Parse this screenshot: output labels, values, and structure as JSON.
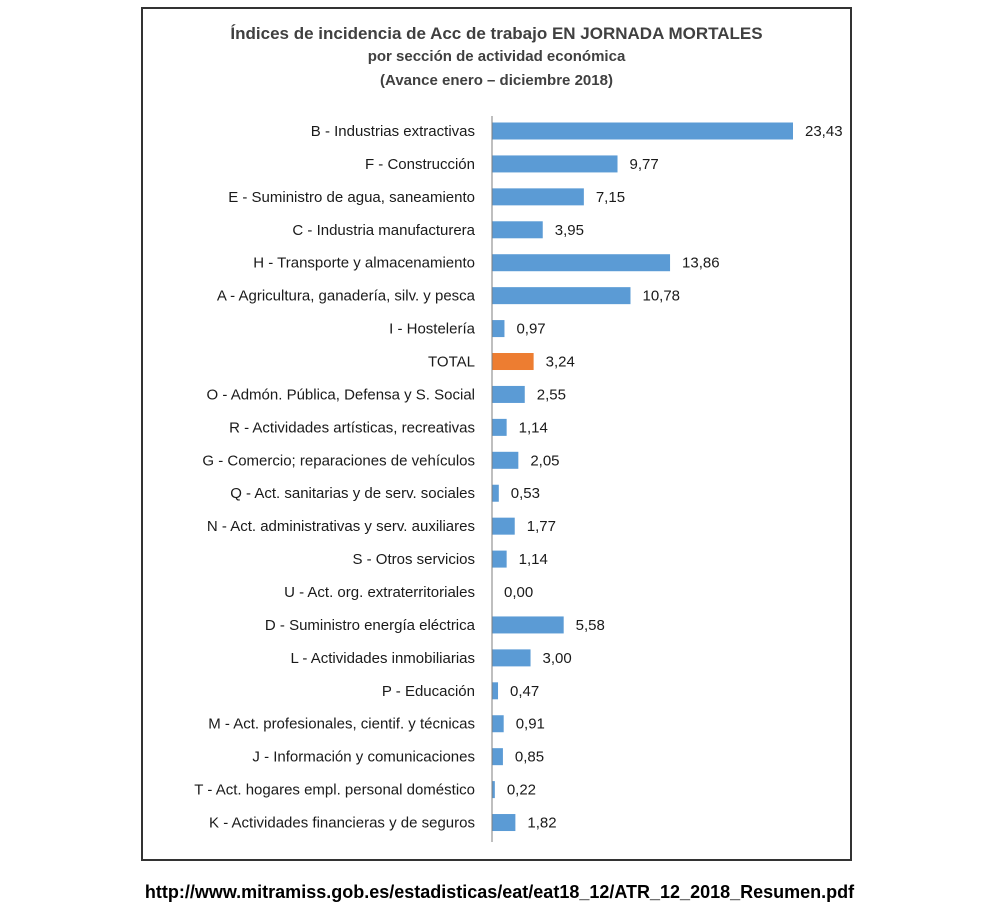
{
  "chart_data": {
    "type": "bar",
    "orientation": "horizontal",
    "title": "Índices de incidencia de Acc de trabajo EN JORNADA MORTALES",
    "subtitle": "por sección de actividad económica",
    "subtitle2": "(Avance enero – diciembre 2018)",
    "xlim": [
      0,
      23.43
    ],
    "grid": false,
    "legend": "none",
    "colors": {
      "bar": "#5b9bd5",
      "highlight": "#ed7d31",
      "axis": "#7f7f7f"
    },
    "highlight_category": "TOTAL",
    "categories": [
      "B - Industrias extractivas",
      "F - Construcción",
      "E - Suministro de agua, saneamiento",
      "C - Industria manufacturera",
      "H - Transporte y almacenamiento",
      "A - Agricultura, ganadería, silv. y pesca",
      "I - Hostelería",
      "TOTAL",
      "O - Admón. Pública, Defensa y S. Social",
      "R - Actividades artísticas, recreativas",
      "G - Comercio; reparaciones de vehículos",
      "Q - Act. sanitarias y de serv. sociales",
      "N - Act. administrativas y serv. auxiliares",
      "S - Otros servicios",
      "U - Act. org. extraterritoriales",
      "D - Suministro energía eléctrica",
      "L - Actividades inmobiliarias",
      "P - Educación",
      "M - Act. profesionales, cientif. y técnicas",
      "J - Información y comunicaciones",
      "T - Act. hogares empl. personal doméstico",
      "K - Actividades financieras y de seguros"
    ],
    "values": [
      23.43,
      9.77,
      7.15,
      3.95,
      13.86,
      10.78,
      0.97,
      3.24,
      2.55,
      1.14,
      2.05,
      0.53,
      1.77,
      1.14,
      0.0,
      5.58,
      3.0,
      0.47,
      0.91,
      0.85,
      0.22,
      1.82
    ],
    "value_labels": [
      "23,43",
      "9,77",
      "7,15",
      "3,95",
      "13,86",
      "10,78",
      "0,97",
      "3,24",
      "2,55",
      "1,14",
      "2,05",
      "0,53",
      "1,77",
      "1,14",
      "0,00",
      "5,58",
      "3,00",
      "0,47",
      "0,91",
      "0,85",
      "0,22",
      "1,82"
    ]
  },
  "source_url": "http://www.mitramiss.gob.es/estadisticas/eat/eat18_12/ATR_12_2018_Resumen.pdf"
}
